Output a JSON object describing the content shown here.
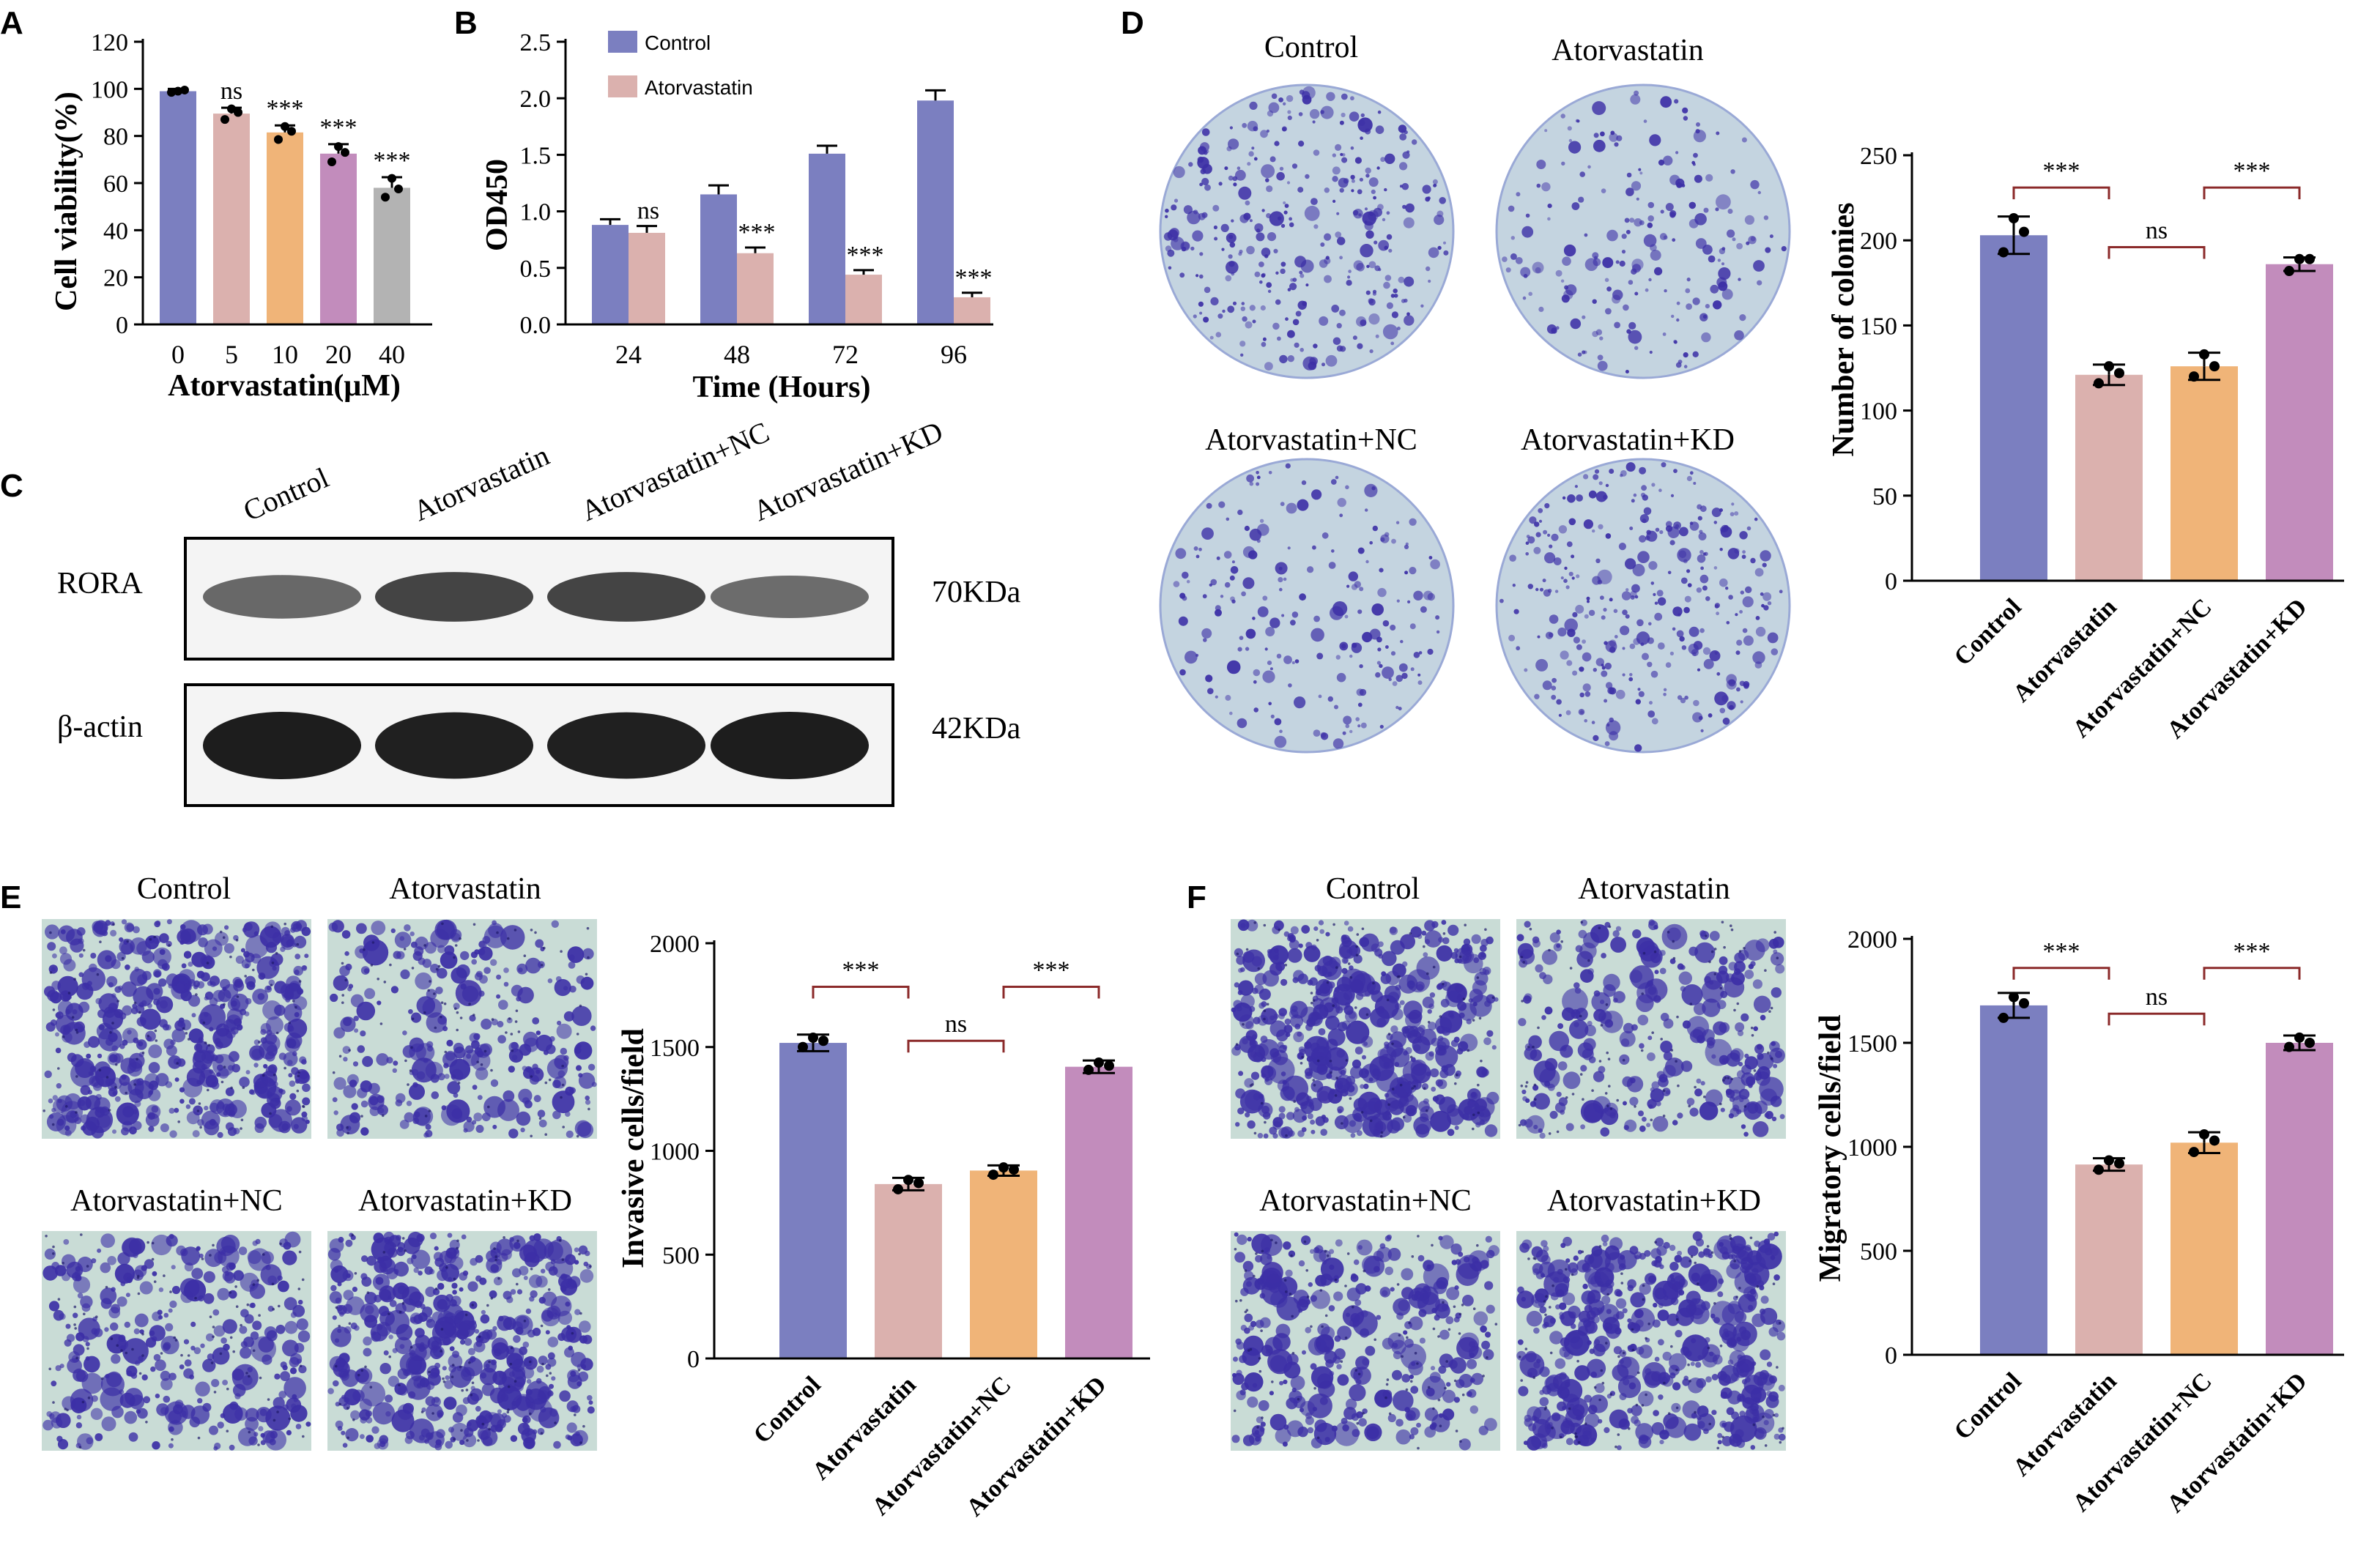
{
  "colors": {
    "control": "#7b7fc0",
    "atorvastatin": "#dbb1ae",
    "atorvastatin_nc": "#f0b478",
    "atorvastatin_kd": "#c28cbc",
    "dose_20": "#c28cbc",
    "dose_40": "#b3b3b3",
    "bracket": "#8b2a2a",
    "axis": "#000000",
    "dish": "#c4d4e0",
    "stain": "#3c2fa6",
    "transwell_bg": "#c9dcd6",
    "blot_bg": "#f4f4f4",
    "band": "#1d1d1d"
  },
  "panels": {
    "A": {
      "letter": "A"
    },
    "B": {
      "letter": "B"
    },
    "C": {
      "letter": "C",
      "lane_labels": [
        "Control",
        "Atorvastatin",
        "Atorvastatin+NC",
        "Atorvastatin+KD"
      ],
      "blots": [
        {
          "protein": "RORA",
          "size": "70KDa",
          "band_intensity": [
            0.55,
            0.85,
            0.85,
            0.5
          ]
        },
        {
          "protein": "β-actin",
          "size": "42KDa",
          "band_intensity": [
            1.0,
            0.95,
            0.95,
            1.0
          ]
        }
      ]
    },
    "D": {
      "letter": "D",
      "image_labels": [
        "Control",
        "Atorvastatin",
        "Atorvastatin+NC",
        "Atorvastatin+KD"
      ],
      "density": [
        1.0,
        0.6,
        0.6,
        0.95
      ],
      "image_type": "colony-dish"
    },
    "E": {
      "letter": "E",
      "image_labels": [
        "Control",
        "Atorvastatin",
        "Atorvastatin+NC",
        "Atorvastatin+KD"
      ],
      "density": [
        1.0,
        0.55,
        0.6,
        0.95
      ],
      "image_type": "transwell"
    },
    "F": {
      "letter": "F",
      "image_labels": [
        "Control",
        "Atorvastatin",
        "Atorvastatin+NC",
        "Atorvastatin+KD"
      ],
      "density": [
        1.0,
        0.55,
        0.62,
        0.92
      ],
      "image_type": "transwell"
    }
  },
  "chart_data": [
    {
      "panel": "A",
      "type": "bar",
      "categories": [
        "0",
        "5",
        "10",
        "20",
        "40"
      ],
      "values": [
        99,
        89.5,
        81.5,
        72.5,
        58
      ],
      "errors": [
        1,
        2.5,
        3,
        4,
        4.5
      ],
      "points": [
        [
          98.5,
          99.5,
          99
        ],
        [
          87,
          90,
          91.5
        ],
        [
          78.5,
          82,
          84
        ],
        [
          69,
          73,
          75.5
        ],
        [
          54,
          57.5,
          62
        ]
      ],
      "sig": [
        "",
        "ns",
        "***",
        "***",
        "***"
      ],
      "xlabel": "Atorvastatin(μM)",
      "ylabel": "Cell viability(%)",
      "ylim": [
        0,
        120
      ],
      "yticks": [
        0,
        20,
        40,
        60,
        80,
        100,
        120
      ]
    },
    {
      "panel": "B",
      "type": "bar",
      "categories": [
        "24",
        "48",
        "72",
        "96"
      ],
      "series": [
        {
          "name": "Control",
          "values": [
            0.88,
            1.15,
            1.51,
            1.98
          ],
          "errors": [
            0.05,
            0.08,
            0.07,
            0.09
          ]
        },
        {
          "name": "Atorvastatin",
          "values": [
            0.81,
            0.63,
            0.44,
            0.24
          ],
          "errors": [
            0.06,
            0.05,
            0.04,
            0.04
          ]
        }
      ],
      "sig": [
        "ns",
        "***",
        "***",
        "***"
      ],
      "xlabel": "Time (Hours)",
      "ylabel": "OD450",
      "ylim": [
        0,
        2.5
      ],
      "yticks": [
        "0.0",
        "0.5",
        "1.0",
        "1.5",
        "2.0",
        "2.5"
      ],
      "legend": "top-left"
    },
    {
      "panel": "D",
      "type": "bar",
      "categories": [
        "Control",
        "Atorvastatin",
        "Atorvastatin+NC",
        "Atorvastatin+KD"
      ],
      "values": [
        203,
        121,
        126,
        186
      ],
      "errors": [
        11,
        6,
        8,
        4
      ],
      "points": [
        [
          193,
          205,
          213
        ],
        [
          116,
          122,
          126
        ],
        [
          120,
          126,
          133
        ],
        [
          182,
          189,
          189
        ]
      ],
      "ylabel": "Number of colonies",
      "ylim": [
        0,
        250
      ],
      "yticks": [
        0,
        50,
        100,
        150,
        200,
        250
      ],
      "brackets": [
        {
          "from": 0,
          "to": 1,
          "label": "***",
          "y": 231
        },
        {
          "from": 1,
          "to": 2,
          "label": "ns",
          "y": 196
        },
        {
          "from": 2,
          "to": 3,
          "label": "***",
          "y": 231
        }
      ]
    },
    {
      "panel": "E",
      "type": "bar",
      "categories": [
        "Control",
        "Atorvastatin",
        "Atorvastatin+NC",
        "Atorvastatin+KD"
      ],
      "values": [
        1520,
        840,
        905,
        1405
      ],
      "errors": [
        40,
        30,
        25,
        30
      ],
      "points": [
        [
          1500,
          1530,
          1545
        ],
        [
          815,
          845,
          860
        ],
        [
          885,
          910,
          920
        ],
        [
          1390,
          1410,
          1425
        ]
      ],
      "ylabel": "Invasive cells/field",
      "ylim": [
        0,
        2000
      ],
      "yticks": [
        0,
        500,
        1000,
        1500,
        2000
      ],
      "brackets": [
        {
          "from": 0,
          "to": 1,
          "label": "***",
          "y": 1790
        },
        {
          "from": 1,
          "to": 2,
          "label": "ns",
          "y": 1530
        },
        {
          "from": 2,
          "to": 3,
          "label": "***",
          "y": 1790
        }
      ]
    },
    {
      "panel": "F",
      "type": "bar",
      "categories": [
        "Control",
        "Atorvastatin",
        "Atorvastatin+NC",
        "Atorvastatin+KD"
      ],
      "values": [
        1680,
        915,
        1020,
        1500
      ],
      "errors": [
        60,
        30,
        50,
        35
      ],
      "points": [
        [
          1620,
          1690,
          1720
        ],
        [
          890,
          920,
          935
        ],
        [
          975,
          1030,
          1060
        ],
        [
          1480,
          1500,
          1525
        ]
      ],
      "ylabel": "Migratory cells/field",
      "ylim": [
        0,
        2000
      ],
      "yticks": [
        0,
        500,
        1000,
        1500,
        2000
      ],
      "brackets": [
        {
          "from": 0,
          "to": 1,
          "label": "***",
          "y": 1860
        },
        {
          "from": 1,
          "to": 2,
          "label": "ns",
          "y": 1640
        },
        {
          "from": 2,
          "to": 3,
          "label": "***",
          "y": 1860
        }
      ]
    }
  ]
}
